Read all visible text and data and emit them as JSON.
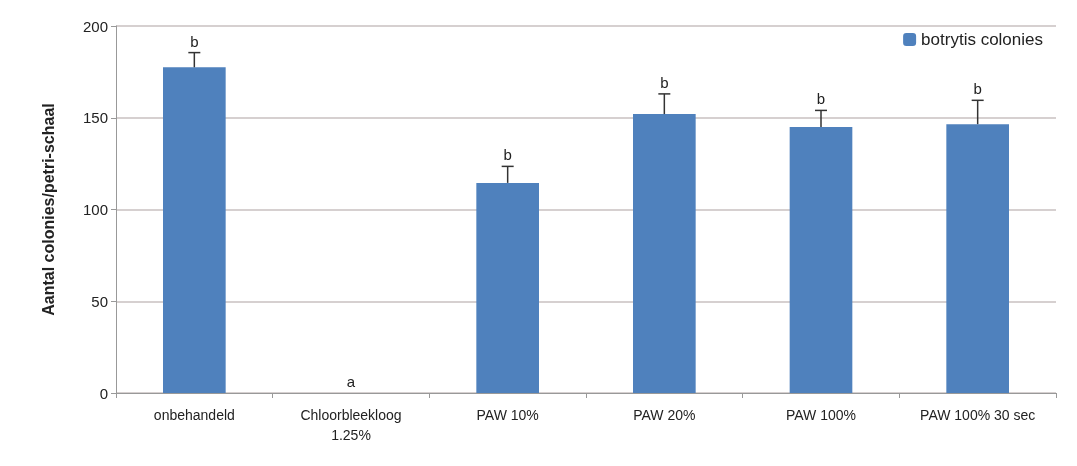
{
  "chart_data": {
    "type": "bar",
    "ylabel": "Aantal colonies/petri-schaal",
    "categories": [
      "onbehandeld",
      "Chloorbleekloog\n1.25%",
      "PAW 10%",
      "PAW 20%",
      "PAW 100%",
      "PAW 100% 30 sec"
    ],
    "series": [
      {
        "name": "botrytis colonies",
        "color": "#4f81bd",
        "values": [
          177.5,
          0,
          114.5,
          152,
          145,
          146.5
        ],
        "errors": [
          8,
          null,
          9,
          11,
          9,
          13
        ]
      }
    ],
    "ylim": [
      0,
      200
    ],
    "yticks": [
      0,
      50,
      100,
      150,
      200
    ],
    "grid": "y",
    "legend": "top right",
    "annotations": [
      {
        "text": "b",
        "x": "onbehandeld",
        "y": 185.5
      },
      {
        "text": "a",
        "x": "Chloorbleekloog\n1.25%",
        "y": 0
      },
      {
        "text": "b",
        "x": "PAW 10%",
        "y": 123.5
      },
      {
        "text": "b",
        "x": "PAW 20%",
        "y": 163
      },
      {
        "text": "b",
        "x": "PAW 100%",
        "y": 154
      },
      {
        "text": "b",
        "x": "PAW 100% 30 sec",
        "y": 159.5
      }
    ]
  }
}
